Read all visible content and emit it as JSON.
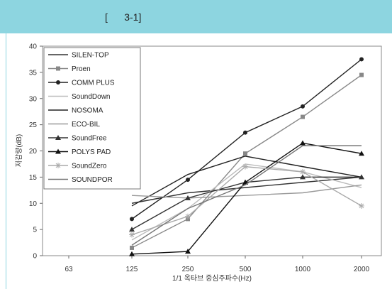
{
  "header": {
    "caption": "[      3-1]"
  },
  "chart_data": {
    "type": "line",
    "title": "",
    "xlabel": "1/1 옥타브 중심주파수(Hz)",
    "ylabel": "저감량(dB)",
    "categories": [
      "63",
      "125",
      "250",
      "500",
      "1000",
      "2000"
    ],
    "ylim": [
      0,
      40
    ],
    "yticks": [
      0,
      5,
      10,
      15,
      20,
      25,
      30,
      35,
      40
    ],
    "grid": false,
    "legend_position": "top-left",
    "series": [
      {
        "name": "SILEN-TOP",
        "color": "#333333",
        "marker": "none",
        "values": [
          null,
          10,
          12,
          13,
          14,
          15
        ]
      },
      {
        "name": "Proen",
        "color": "#888888",
        "marker": "square",
        "values": [
          null,
          1.5,
          7,
          19.5,
          26.5,
          34.5
        ]
      },
      {
        "name": "COMM PLUS",
        "color": "#222222",
        "marker": "circle",
        "values": [
          null,
          7,
          14.5,
          23.5,
          28.5,
          37.5
        ]
      },
      {
        "name": "SoundDown",
        "color": "#bbbbbb",
        "marker": "none",
        "values": [
          null,
          3,
          9,
          17.5,
          16,
          13
        ]
      },
      {
        "name": "NOSOMA",
        "color": "#222222",
        "marker": "none",
        "values": [
          null,
          9.5,
          15.5,
          19,
          17,
          15
        ]
      },
      {
        "name": "ECO-BIL",
        "color": "#999999",
        "marker": "none",
        "values": [
          null,
          11.5,
          11,
          11.5,
          12,
          13.5
        ]
      },
      {
        "name": "SoundFree",
        "color": "#333333",
        "marker": "triangle",
        "values": [
          null,
          5,
          11,
          14,
          15,
          15
        ]
      },
      {
        "name": "POLYS PAD",
        "color": "#111111",
        "marker": "triangle",
        "values": [
          null,
          0.3,
          0.8,
          14,
          21.5,
          19.5
        ]
      },
      {
        "name": "SoundZero",
        "color": "#aaaaaa",
        "marker": "star",
        "values": [
          null,
          4,
          7.5,
          17,
          16,
          9.5
        ]
      },
      {
        "name": "SOUNDPOR",
        "color": "#777777",
        "marker": "none",
        "values": [
          null,
          2,
          9,
          13.5,
          21,
          21
        ]
      }
    ]
  }
}
